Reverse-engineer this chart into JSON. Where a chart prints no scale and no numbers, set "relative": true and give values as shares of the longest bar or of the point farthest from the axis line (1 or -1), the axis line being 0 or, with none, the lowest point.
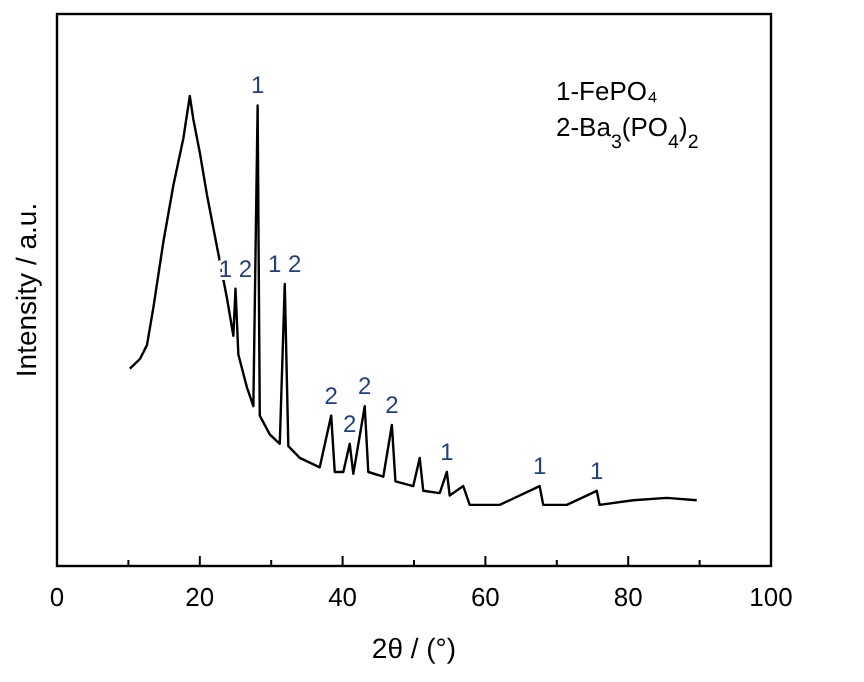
{
  "chart_data": {
    "type": "line",
    "relative": true,
    "xlabel": "2θ / (°)",
    "ylabel": "Intensity / a.u.",
    "xlim": [
      0,
      100
    ],
    "xticks": [
      0,
      {
        "value": 10,
        "label": null
      },
      20,
      {
        "value": 30,
        "label": null
      },
      40,
      {
        "value": 50,
        "label": null
      },
      60,
      {
        "value": 70,
        "label": null
      },
      80,
      {
        "value": 90,
        "label": null
      },
      100
    ],
    "tick_labels": "x",
    "grid": false,
    "marker": "none",
    "line_style": "solid",
    "series": [
      {
        "color": "#000000",
        "x": [
          10.2,
          11.6,
          12.6,
          13.5,
          14.9,
          16.3,
          17.7,
          18.6,
          19.1,
          20.0,
          21.0,
          22.4,
          23.8,
          24.7,
          25.0,
          25.4,
          26.6,
          27.5,
          28.1,
          28.4,
          29.8,
          31.2,
          31.9,
          32.4,
          34.0,
          36.8,
          38.4,
          38.9,
          40.1,
          41.0,
          41.5,
          43.1,
          43.6,
          45.7,
          46.9,
          47.4,
          49.9,
          50.8,
          51.3,
          53.6,
          54.6,
          55.0,
          56.9,
          57.8,
          62.0,
          67.6,
          68.1,
          71.4,
          75.6,
          76.0,
          80.7,
          85.4,
          89.6
        ],
        "values": [
          0.42,
          0.44,
          0.47,
          0.55,
          0.69,
          0.81,
          0.91,
          1,
          0.95,
          0.88,
          0.79,
          0.68,
          0.57,
          0.49,
          0.59,
          0.45,
          0.38,
          0.34,
          0.98,
          0.32,
          0.28,
          0.26,
          0.6,
          0.255,
          0.23,
          0.21,
          0.32,
          0.2,
          0.2,
          0.26,
          0.196,
          0.34,
          0.2,
          0.19,
          0.3,
          0.18,
          0.17,
          0.23,
          0.16,
          0.155,
          0.2,
          0.15,
          0.17,
          0.13,
          0.13,
          0.17,
          0.13,
          0.13,
          0.16,
          0.13,
          0.14,
          0.145,
          0.14
        ]
      }
    ],
    "annotations": [
      {
        "text": "1",
        "x": 28.1,
        "y": 0.98
      },
      {
        "text": "1 2",
        "x": 25.0,
        "y": 0.59
      },
      {
        "text": "1 2",
        "x": 31.9,
        "y": 0.6
      },
      {
        "text": "2",
        "x": 38.4,
        "y": 0.32
      },
      {
        "text": "2",
        "x": 41.0,
        "y": 0.26
      },
      {
        "text": "2",
        "x": 43.1,
        "y": 0.34
      },
      {
        "text": "2",
        "x": 46.9,
        "y": 0.3
      },
      {
        "text": "1",
        "x": 54.6,
        "y": 0.2
      },
      {
        "text": "1",
        "x": 67.6,
        "y": 0.17
      },
      {
        "text": "1",
        "x": 75.6,
        "y": 0.16
      },
      "1-FePO₄",
      "2-Ba$_{3}$(PO$_{4}$)$_{2}$"
    ]
  }
}
